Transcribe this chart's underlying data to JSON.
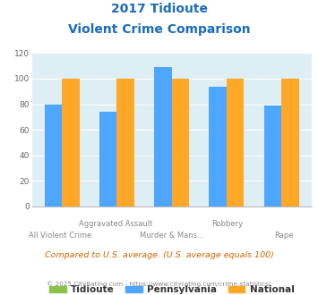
{
  "title_line1": "2017 Tidioute",
  "title_line2": "Violent Crime Comparison",
  "pennsylvania_values": [
    80,
    74,
    109,
    94,
    79
  ],
  "national_values": [
    100,
    100,
    100,
    100,
    100
  ],
  "color_tidioute": "#8bc34a",
  "color_pennsylvania": "#4da6ff",
  "color_national": "#ffa726",
  "color_title": "#1a6bbf",
  "color_bg_plot": "#deeef5",
  "color_footer": "#888888",
  "color_compared": "#cc6600",
  "ylim": [
    0,
    120
  ],
  "yticks": [
    0,
    20,
    40,
    60,
    80,
    100,
    120
  ],
  "legend_labels": [
    "Tidioute",
    "Pennsylvania",
    "National"
  ],
  "x_top_labels": [
    "Aggravated Assault",
    "",
    "Robbery",
    ""
  ],
  "x_bot_labels": [
    "All Violent Crime",
    "Murder & Mans...",
    "",
    "Rape"
  ],
  "footnote1": "Compared to U.S. average. (U.S. average equals 100)",
  "footnote2": "© 2025 CityRating.com - https://www.cityrating.com/crime-statistics/",
  "bar_width": 0.32
}
